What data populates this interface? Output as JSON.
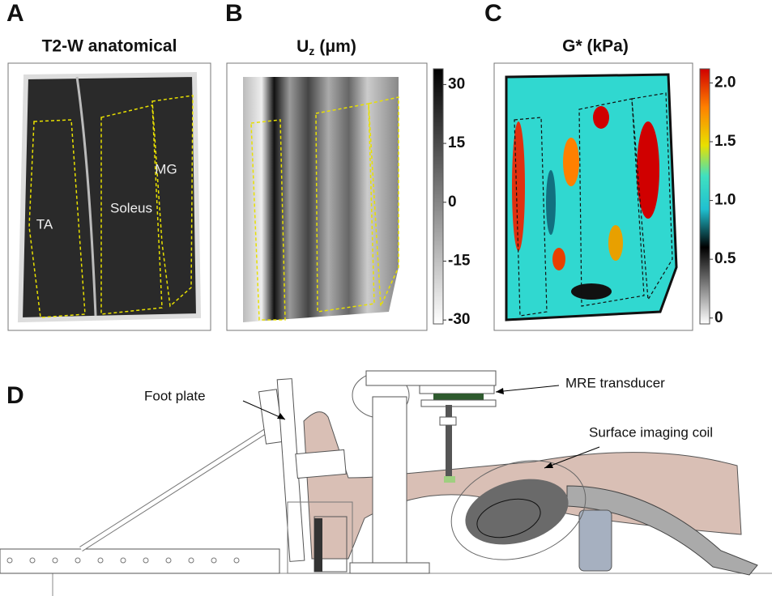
{
  "panels": [
    {
      "letter": "A",
      "title": "T2-W anatomical",
      "labels": [
        "TA",
        "Soleus",
        "MG"
      ]
    },
    {
      "letter": "B",
      "title": {
        "symbol": "U",
        "subscript": "z",
        "unit": "(μm)"
      },
      "colorbar": {
        "lim": [
          -31,
          34
        ],
        "ticks": [
          30,
          15,
          0,
          -15,
          -30
        ]
      }
    },
    {
      "letter": "C",
      "title": "G* (kPa)",
      "colorbar": {
        "lim": [
          -0.05,
          2.12
        ],
        "ticks": [
          {
            "value": 2,
            "label": "2.0"
          },
          1.5,
          {
            "value": 1,
            "label": "1.0"
          },
          0.5,
          0
        ]
      }
    },
    {
      "letter": "D",
      "labels": [
        "Foot plate",
        "MRE transducer",
        "Surface imaging coil"
      ]
    }
  ]
}
